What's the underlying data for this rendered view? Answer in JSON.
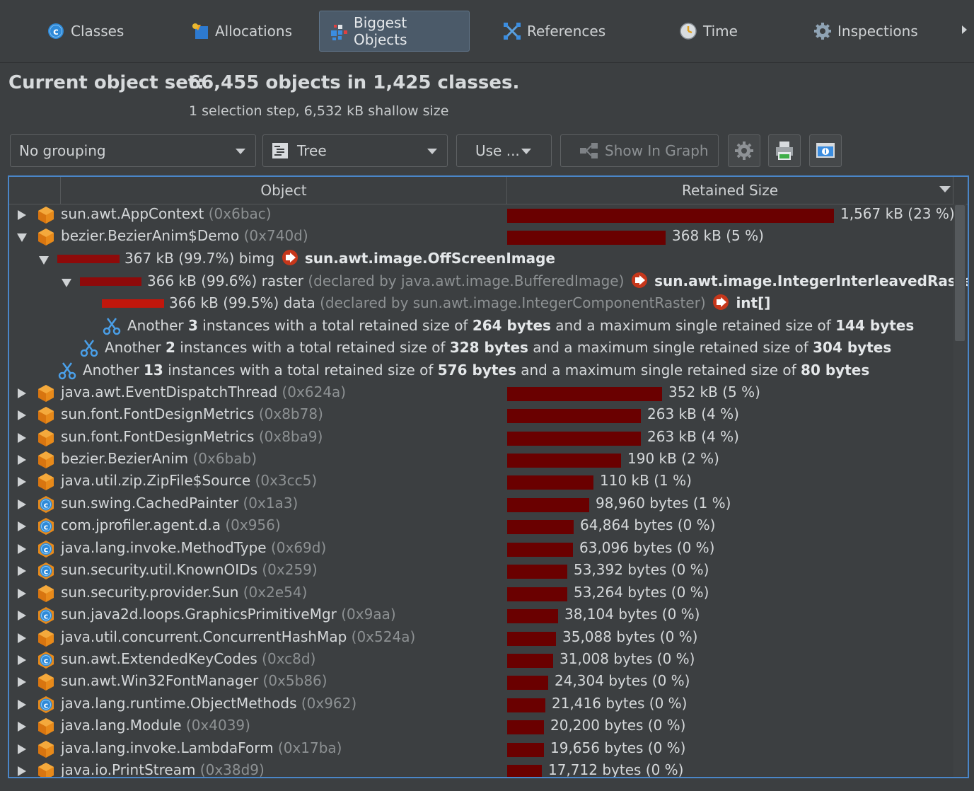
{
  "tabs": [
    {
      "label": "Classes",
      "icon": "classes-icon"
    },
    {
      "label": "Allocations",
      "icon": "allocations-icon"
    },
    {
      "label": "Biggest Objects",
      "icon": "biggest-objects-icon"
    },
    {
      "label": "References",
      "icon": "references-icon"
    },
    {
      "label": "Time",
      "icon": "time-icon"
    },
    {
      "label": "Inspections",
      "icon": "inspections-icon"
    }
  ],
  "header": {
    "label": "Current object set:",
    "value": "66,455 objects in 1,425 classes.",
    "sub": "1 selection step, 6,532 kB shallow size"
  },
  "toolbar": {
    "grouping": "No grouping",
    "view": "Tree",
    "use": "Use ...",
    "show_graph": "Show In Graph"
  },
  "table": {
    "col_object": "Object",
    "col_retained": "Retained Size",
    "rows": [
      {
        "name": "sun.awt.AppContext",
        "hash": "(0x6bac)",
        "size": "1,567 kB (23 %)",
        "type": "object",
        "percent": 23,
        "expanded": false
      },
      {
        "name": "bezier.BezierAnim$Demo",
        "hash": "(0x740d)",
        "size": "368 kB (5 %)",
        "type": "object",
        "percent": 5,
        "expanded": true
      },
      {
        "name": "java.awt.EventDispatchThread",
        "hash": "(0x624a)",
        "size": "352 kB (5 %)",
        "type": "object",
        "percent": 5,
        "expanded": false
      },
      {
        "name": "sun.font.FontDesignMetrics",
        "hash": "(0x8b78)",
        "size": "263 kB (4 %)",
        "type": "object",
        "percent": 4,
        "expanded": false
      },
      {
        "name": "sun.font.FontDesignMetrics",
        "hash": "(0x8ba9)",
        "size": "263 kB (4 %)",
        "type": "object",
        "percent": 4,
        "expanded": false
      },
      {
        "name": "bezier.BezierAnim",
        "hash": "(0x6bab)",
        "size": "190 kB (2 %)",
        "type": "object",
        "percent": 2,
        "expanded": false
      },
      {
        "name": "java.util.zip.ZipFile$Source",
        "hash": "(0x3cc5)",
        "size": "110 kB (1 %)",
        "type": "object",
        "percent": 1,
        "expanded": false
      },
      {
        "name": "sun.swing.CachedPainter",
        "hash": "(0x1a3)",
        "size": "98,960 bytes (1 %)",
        "type": "class",
        "percent": 1,
        "expanded": false
      },
      {
        "name": "com.jprofiler.agent.d.a",
        "hash": "(0x956)",
        "size": "64,864 bytes (0 %)",
        "type": "class",
        "percent": 0,
        "expanded": false
      },
      {
        "name": "java.lang.invoke.MethodType",
        "hash": "(0x69d)",
        "size": "63,096 bytes (0 %)",
        "type": "class",
        "percent": 0,
        "expanded": false
      },
      {
        "name": "sun.security.util.KnownOIDs",
        "hash": "(0x259)",
        "size": "53,392 bytes (0 %)",
        "type": "class",
        "percent": 0,
        "expanded": false
      },
      {
        "name": "sun.security.provider.Sun",
        "hash": "(0x2e54)",
        "size": "53,264 bytes (0 %)",
        "type": "object",
        "percent": 0,
        "expanded": false
      },
      {
        "name": "sun.java2d.loops.GraphicsPrimitiveMgr",
        "hash": "(0x9aa)",
        "size": "38,104 bytes (0 %)",
        "type": "class",
        "percent": 0,
        "expanded": false
      },
      {
        "name": "java.util.concurrent.ConcurrentHashMap",
        "hash": "(0x524a)",
        "size": "35,088 bytes (0 %)",
        "type": "object",
        "percent": 0,
        "expanded": false
      },
      {
        "name": "sun.awt.ExtendedKeyCodes",
        "hash": "(0xc8d)",
        "size": "31,008 bytes (0 %)",
        "type": "class",
        "percent": 0,
        "expanded": false
      },
      {
        "name": "sun.awt.Win32FontManager",
        "hash": "(0x5b86)",
        "size": "24,304 bytes (0 %)",
        "type": "object",
        "percent": 0,
        "expanded": false
      },
      {
        "name": "java.lang.runtime.ObjectMethods",
        "hash": "(0x962)",
        "size": "21,416 bytes (0 %)",
        "type": "class",
        "percent": 0,
        "expanded": false
      },
      {
        "name": "java.lang.Module",
        "hash": "(0x4039)",
        "size": "20,200 bytes (0 %)",
        "type": "object",
        "percent": 0,
        "expanded": false
      },
      {
        "name": "java.lang.invoke.LambdaForm",
        "hash": "(0x17ba)",
        "size": "19,656 bytes (0 %)",
        "type": "object",
        "percent": 0,
        "expanded": false
      },
      {
        "name": "java.io.PrintStream",
        "hash": "(0x38d9)",
        "size": "17,712 bytes (0 %)",
        "type": "object",
        "percent": 0,
        "expanded": false
      }
    ],
    "demo_children": {
      "bimg": {
        "size": "367 kB (99.7%)",
        "field": "bimg",
        "target": "sun.awt.image.OffScreenImage"
      },
      "raster": {
        "size": "366 kB (99.6%)",
        "field": "raster",
        "declared": "(declared by java.awt.image.BufferedImage)",
        "target": "sun.awt.image.IntegerInterleavedRaster"
      },
      "data": {
        "size": "366 kB (99.5%)",
        "field": "data",
        "declared": "(declared by sun.awt.image.IntegerComponentRaster)",
        "target": "int[]"
      },
      "another3": {
        "p1": "Another",
        "count": "3",
        "p2": "instances with a total retained size of",
        "total": "264 bytes",
        "p3": "and a maximum single retained size of",
        "max": "144 bytes"
      },
      "another2": {
        "p1": "Another",
        "count": "2",
        "p2": "instances with a total retained size of",
        "total": "328 bytes",
        "p3": "and a maximum single retained size of",
        "max": "304 bytes"
      },
      "another13": {
        "p1": "Another",
        "count": "13",
        "p2": "instances with a total retained size of",
        "total": "576 bytes",
        "p3": "and a maximum single retained size of",
        "max": "80 bytes"
      }
    }
  },
  "colors": {
    "background": "#3c3f41",
    "bar": "#6a0000",
    "selection_border": "#4a86c8",
    "active_tab": "#4b5a69",
    "ref_arrow": "#c6371b"
  }
}
